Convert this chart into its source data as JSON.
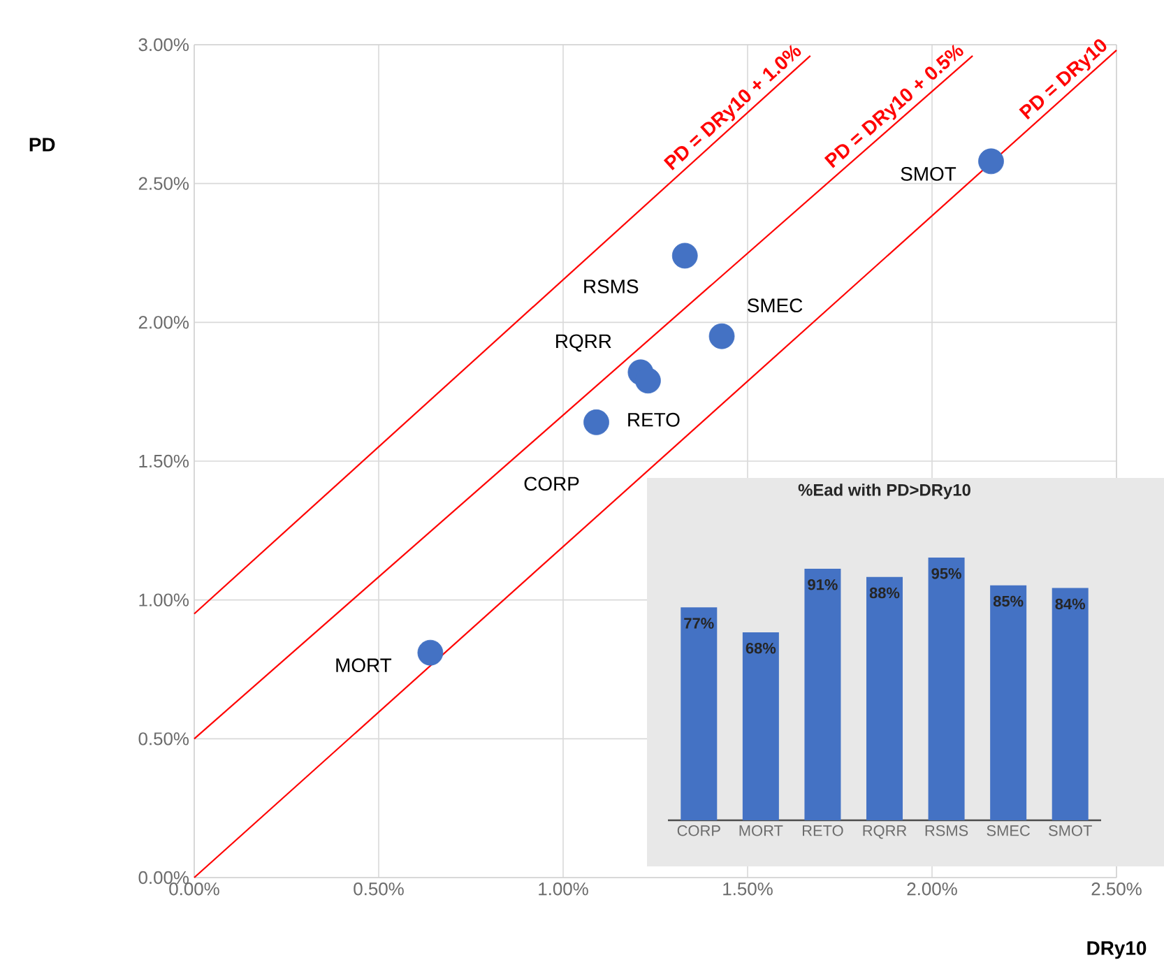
{
  "chart_data": [
    {
      "type": "scatter",
      "xlabel": "DRy10",
      "ylabel": "PD",
      "xlim": [
        0,
        2.5
      ],
      "ylim": [
        0,
        3
      ],
      "xticks": [
        {
          "value": 0,
          "label": "0.00%"
        },
        {
          "value": 0.5,
          "label": "0.50%"
        },
        {
          "value": 1,
          "label": "1.00%"
        },
        {
          "value": 1.5,
          "label": "1.50%"
        },
        {
          "value": 2,
          "label": "2.00%"
        },
        {
          "value": 2.5,
          "label": "2.50%"
        }
      ],
      "yticks": [
        {
          "value": 0,
          "label": "0.00%"
        },
        {
          "value": 0.5,
          "label": "0.50%"
        },
        {
          "value": 1,
          "label": "1.00%"
        },
        {
          "value": 1.5,
          "label": "1.50%"
        },
        {
          "value": 2,
          "label": "2.00%"
        },
        {
          "value": 2.5,
          "label": "2.50%"
        },
        {
          "value": 3,
          "label": "3.00%"
        }
      ],
      "grid": true,
      "series": [
        {
          "type": "scatter",
          "color": "#4472c4",
          "x": [
            2.16,
            1.33,
            1.43,
            1.21,
            1.23,
            1.09,
            0.64
          ],
          "values": [
            2.58,
            2.24,
            1.95,
            1.82,
            1.79,
            1.64,
            0.81
          ]
        },
        {
          "type": "line",
          "name": "PD = DRy10",
          "color": "#ff0000",
          "x": [
            0,
            2.5
          ],
          "values": [
            0,
            2.98
          ]
        },
        {
          "type": "line",
          "name": "PD = DRy10 + 0.5%",
          "color": "#ff0000",
          "x": [
            0,
            2.11
          ],
          "values": [
            0.5,
            2.96
          ]
        },
        {
          "type": "line",
          "name": "PD = DRy10 + 1.0%",
          "color": "#ff0000",
          "x": [
            0,
            1.67
          ],
          "values": [
            0.95,
            2.96
          ]
        }
      ],
      "annotations": [
        {
          "text": "SMOT",
          "x": 2.16,
          "y": 2.58
        },
        {
          "text": "RSMS",
          "x": 1.33,
          "y": 2.24
        },
        {
          "text": "SMEC",
          "x": 1.43,
          "y": 1.95
        },
        {
          "text": "RQRR",
          "x": 1.21,
          "y": 1.82
        },
        {
          "text": "RETO",
          "x": 1.23,
          "y": 1.79
        },
        {
          "text": "CORP",
          "x": 1.09,
          "y": 1.64
        },
        {
          "text": "MORT",
          "x": 0.64,
          "y": 0.81
        }
      ]
    },
    {
      "type": "bar",
      "title": "%Ead with PD>DRy10",
      "categories": [
        "CORP",
        "MORT",
        "RETO",
        "RQRR",
        "RSMS",
        "SMEC",
        "SMOT"
      ],
      "values": [
        77,
        68,
        91,
        88,
        95,
        85,
        84
      ],
      "value_labels": [
        "77%",
        "68%",
        "91%",
        "88%",
        "95%",
        "85%",
        "84%"
      ],
      "color": "#4472c4",
      "tick_labels": "x"
    }
  ]
}
